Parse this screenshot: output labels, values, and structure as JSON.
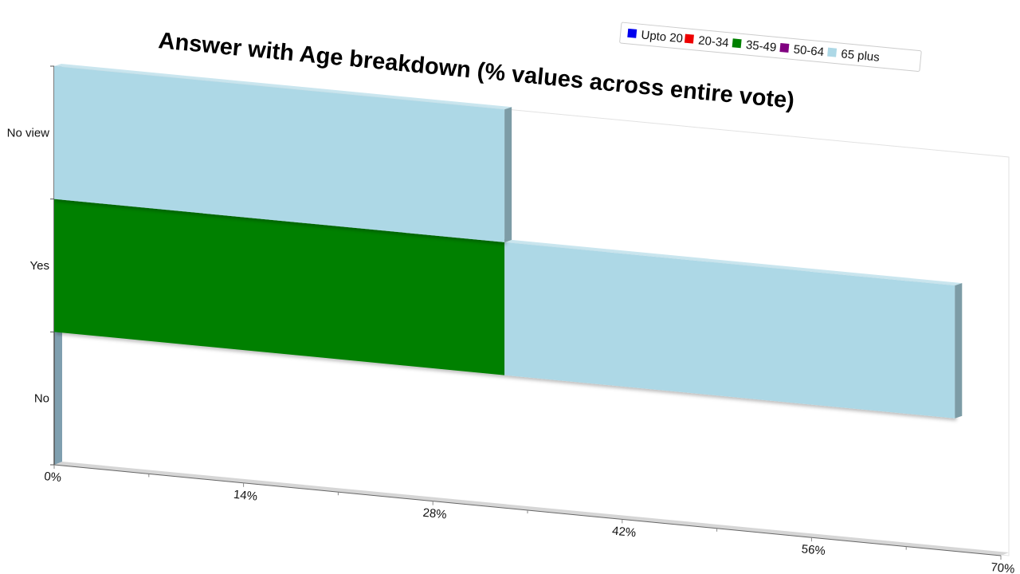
{
  "chart_data": {
    "type": "bar",
    "orientation": "horizontal",
    "stacked": true,
    "title": "Answer with Age breakdown (% values across entire vote)",
    "categories": [
      "No",
      "Yes",
      "No view"
    ],
    "series": [
      {
        "name": "Upto 20",
        "color": "#0000ee",
        "values": [
          0,
          0,
          0
        ]
      },
      {
        "name": "20-34",
        "color": "#ee0000",
        "values": [
          0,
          0,
          0
        ]
      },
      {
        "name": "35-49",
        "color": "#008000",
        "values": [
          0,
          33.3,
          0
        ]
      },
      {
        "name": "50-64",
        "color": "#800080",
        "values": [
          0,
          0,
          0
        ]
      },
      {
        "name": "65 plus",
        "color": "#add8e6",
        "values": [
          0,
          33.3,
          33.3
        ]
      }
    ],
    "xlim": [
      0,
      70
    ],
    "xticks": [
      "0%",
      "14%",
      "28%",
      "42%",
      "56%",
      "70%"
    ],
    "grid": false,
    "legend_position": "top-right"
  }
}
